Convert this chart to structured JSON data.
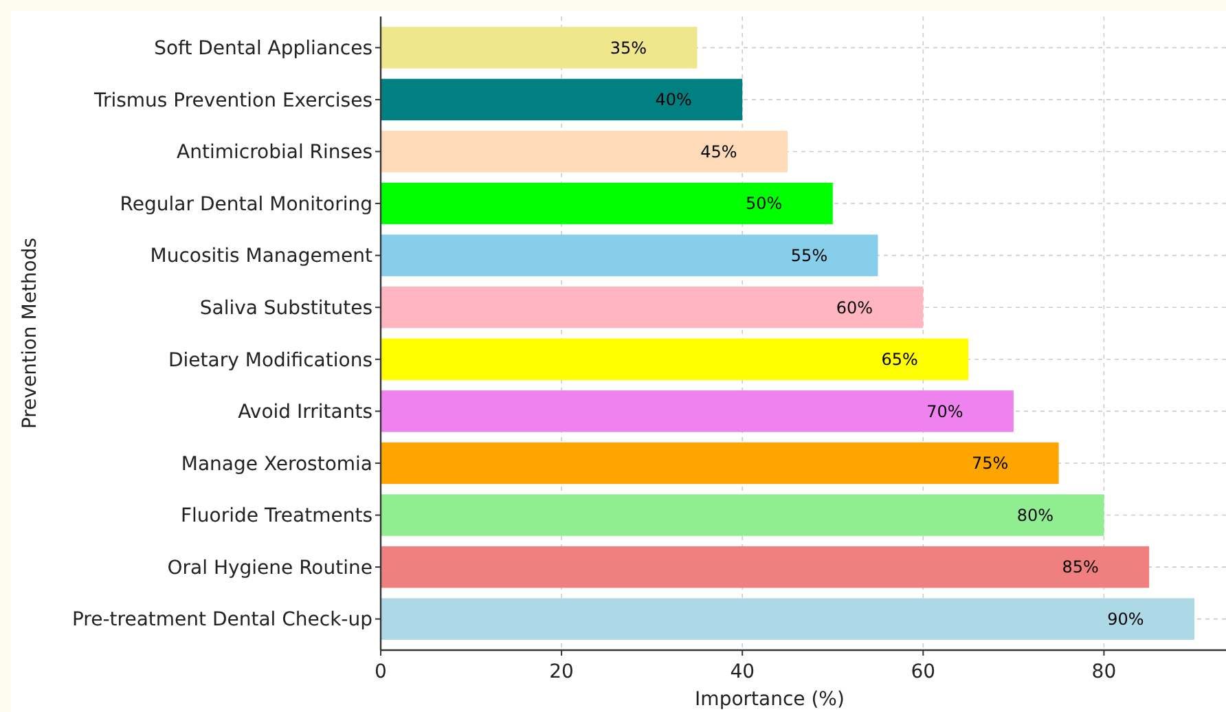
{
  "chart_data": {
    "type": "bar",
    "orientation": "horizontal",
    "xlabel": "Importance (%)",
    "ylabel": "Prevention Methods",
    "categories": [
      "Soft Dental Appliances",
      "Trismus Prevention Exercises",
      "Antimicrobial Rinses",
      "Regular Dental Monitoring",
      "Mucositis Management",
      "Saliva Substitutes",
      "Dietary Modifications",
      "Avoid Irritants",
      "Manage Xerostomia",
      "Fluoride Treatments",
      "Oral Hygiene Routine",
      "Pre-treatment Dental Check-up"
    ],
    "values": [
      35,
      40,
      45,
      50,
      55,
      60,
      65,
      70,
      75,
      80,
      85,
      90
    ],
    "colors": [
      "#f0e68c",
      "#008080",
      "#ffdab9",
      "#00ff00",
      "#87ceeb",
      "#ffb6c1",
      "#ffff00",
      "#ee82ee",
      "#ffa500",
      "#90ee90",
      "#f08080",
      "#add8e6"
    ],
    "value_labels": [
      "35%",
      "40%",
      "45%",
      "50%",
      "55%",
      "60%",
      "65%",
      "70%",
      "75%",
      "80%",
      "85%",
      "90%"
    ],
    "xlim": [
      0,
      93.5
    ],
    "xticks": [
      0,
      20,
      40,
      60,
      80
    ],
    "grid": true
  }
}
